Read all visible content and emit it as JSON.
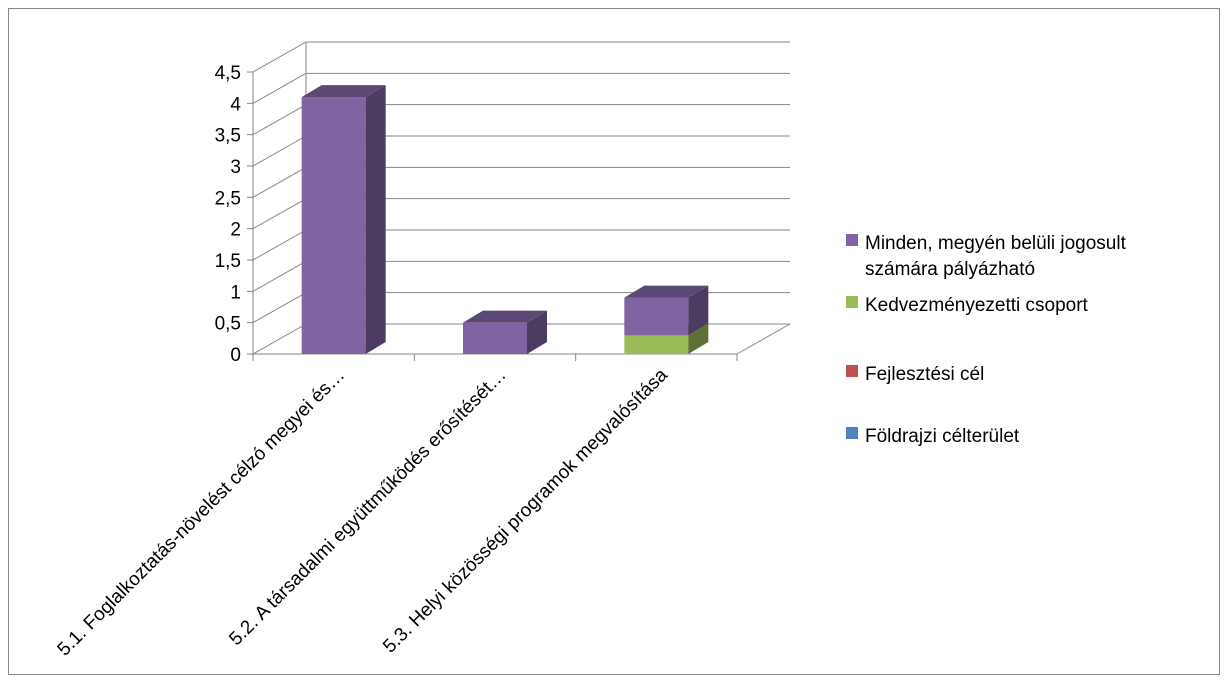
{
  "chart_data": {
    "type": "bar",
    "stacked": true,
    "three_d": true,
    "categories": [
      "5.1. Foglalkoztatás-növelést célzó megyei és…",
      "5.2. A társadalmi együttműködés erősítését…",
      "5.3. Helyi közösségi programok megvalósítása"
    ],
    "series": [
      {
        "name": "Földrajzi célterület",
        "color": "#4f81bd",
        "values": [
          0,
          0,
          0
        ]
      },
      {
        "name": "Fejlesztési cél",
        "color": "#c0504d",
        "values": [
          0,
          0,
          0
        ]
      },
      {
        "name": "Kedvezményezetti csoport",
        "color": "#9bbb59",
        "values": [
          0,
          0,
          0.3
        ]
      },
      {
        "name": "Minden, megyén belüli jogosult számára pályázható",
        "color": "#8064a2",
        "values": [
          4.1,
          0.5,
          0.6
        ]
      }
    ],
    "legend_order": [
      "Minden, megyén belüli jogosult számára pályázható",
      "Kedvezményezetti csoport",
      "Fejlesztési cél",
      "Földrajzi célterület"
    ],
    "yticks": [
      "0",
      "0,5",
      "1",
      "1,5",
      "2",
      "2,5",
      "3",
      "3,5",
      "4",
      "4,5"
    ],
    "ylim": [
      0,
      4.5
    ],
    "grid": true,
    "legend_position": "right"
  }
}
